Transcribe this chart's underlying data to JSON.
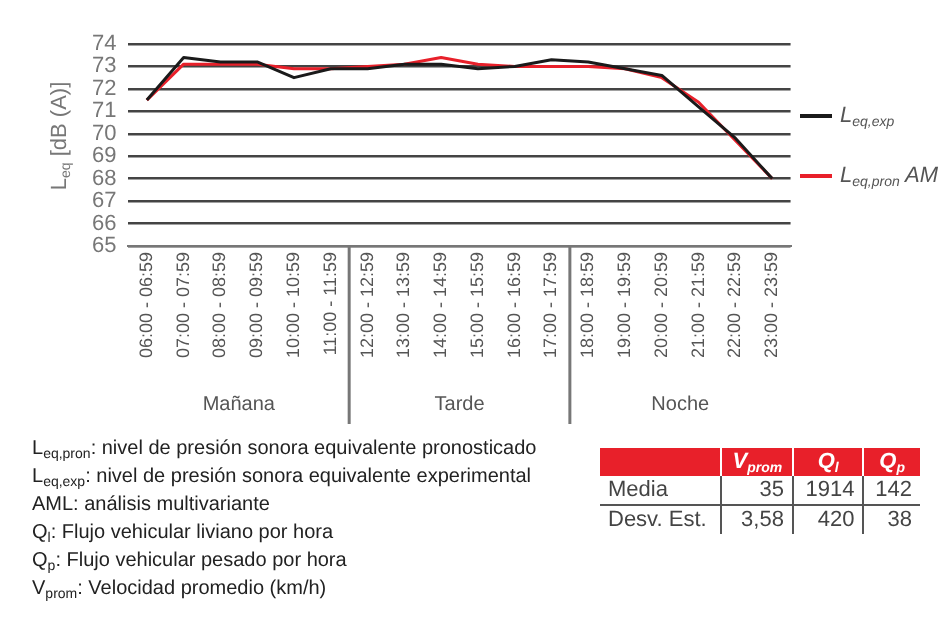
{
  "chart_data": [
    {
      "type": "line",
      "ylabel": "L$_{eq}$ [dB (A)]",
      "categories": [
        "06:00 - 06:59",
        "07:00 - 07:59",
        "08:00 - 08:59",
        "09:00 - 09:59",
        "10:00 - 10:59",
        "11:00 - 11:59",
        "12:00 - 12:59",
        "13:00 - 13:59",
        "14:00 - 14:59",
        "15:00 - 15:59",
        "16:00 - 16:59",
        "17:00 - 17:59",
        "18:00 - 18:59",
        "19:00 - 19:59",
        "20:00 - 20:59",
        "21:00 - 21:59",
        "22:00 - 22:59",
        "23:00 - 23:59"
      ],
      "series": [
        {
          "name": "L$_{eq,exp}$",
          "color": "#1a1a1a",
          "values": [
            71.5,
            73.4,
            73.2,
            73.2,
            72.5,
            72.9,
            72.9,
            73.1,
            73.1,
            72.9,
            73.0,
            73.3,
            73.2,
            72.9,
            72.6,
            71.2,
            69.8,
            68.0
          ]
        },
        {
          "name": "L$_{eq,pron}$ AM",
          "color": "#e8202a",
          "values": [
            71.5,
            73.1,
            73.1,
            73.1,
            72.9,
            72.9,
            73.0,
            73.1,
            73.4,
            73.1,
            73.0,
            73.0,
            73.0,
            72.9,
            72.5,
            71.4,
            69.7,
            68.0
          ]
        }
      ],
      "ylim": [
        65,
        74
      ],
      "yticks": [
        65,
        66,
        67,
        68,
        69,
        70,
        71,
        72,
        73,
        74
      ],
      "grid": "y",
      "legend": "right",
      "marker": "none",
      "line_style": "solid",
      "annotations": [
        "Mañana",
        "Tarde",
        "Noche"
      ]
    },
    {
      "type": "other",
      "annotations": [
        "L$_{eq,pron}$: nivel de presión sonora equivalente pronosticado",
        "L$_{eq,exp}$: nivel de presión sonora equivalente experimental",
        "AML: análisis multivariante",
        "Q$_{l}$: Flujo vehicular liviano por hora",
        "Q$_{p}$: Flujo vehicular pesado por hora",
        "V$_{prom}$: Velocidad promedio (km/h)"
      ],
      "categories": [
        "V$_{prom}$",
        "Q$_{l}$",
        "Q$_{p}$"
      ],
      "y_categories": [
        "Media",
        "Desv. Est."
      ],
      "cell_labels": [
        [
          "35",
          "1914",
          "142"
        ],
        [
          "3,58",
          "420",
          "38"
        ]
      ]
    }
  ]
}
